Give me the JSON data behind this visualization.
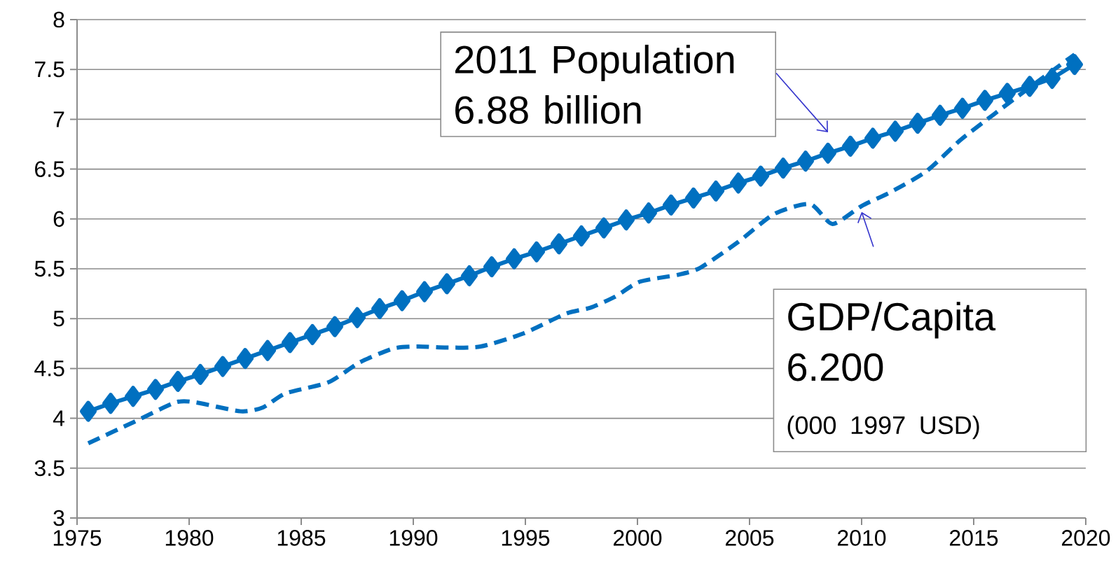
{
  "chart_data": {
    "type": "line",
    "xlim": [
      1975,
      2020
    ],
    "xticks": [
      1975,
      1980,
      1985,
      1990,
      1995,
      2000,
      2005,
      2010,
      2015,
      2020
    ],
    "ylim": [
      3,
      8
    ],
    "yticks": [
      3,
      3.5,
      4,
      4.5,
      5,
      5.5,
      6,
      6.5,
      7,
      7.5,
      8
    ],
    "grid": "y",
    "series": [
      {
        "color": "#0070c0",
        "marker": "diamond",
        "line_style": "solid",
        "x": [
          1975.5,
          1976.5,
          1977.5,
          1978.5,
          1979.5,
          1980.5,
          1981.5,
          1982.5,
          1983.5,
          1984.5,
          1985.5,
          1986.5,
          1987.5,
          1988.5,
          1989.5,
          1990.5,
          1991.5,
          1992.5,
          1993.5,
          1994.5,
          1995.5,
          1996.5,
          1997.5,
          1998.5,
          1999.5,
          2000.5,
          2001.5,
          2002.5,
          2003.5,
          2004.5,
          2005.5,
          2006.5,
          2007.5,
          2008.5,
          2009.5,
          2010.5,
          2011.5,
          2012.5,
          2013.5,
          2014.5,
          2015.5,
          2016.5,
          2017.5,
          2018.5,
          2019.5
        ],
        "values": [
          4.07,
          4.15,
          4.22,
          4.29,
          4.37,
          4.44,
          4.52,
          4.6,
          4.68,
          4.76,
          4.84,
          4.92,
          5.01,
          5.1,
          5.18,
          5.27,
          5.35,
          5.43,
          5.52,
          5.6,
          5.67,
          5.75,
          5.83,
          5.91,
          5.99,
          6.06,
          6.14,
          6.21,
          6.28,
          6.36,
          6.43,
          6.51,
          6.58,
          6.66,
          6.73,
          6.81,
          6.88,
          6.96,
          7.04,
          7.11,
          7.19,
          7.26,
          7.33,
          7.41,
          7.55
        ]
      },
      {
        "color": "#0070c0",
        "marker": "none",
        "line_style": "dashed",
        "x": [
          1975.5,
          1977.6,
          1979.4,
          1980.3,
          1982.3,
          1983.3,
          1984.3,
          1986.2,
          1987.6,
          1989.1,
          1990.2,
          1991.4,
          1993.0,
          1994.9,
          1996.8,
          1997.9,
          1999.0,
          2000.1,
          2001.8,
          2002.8,
          2004.5,
          2006.1,
          2007.7,
          2008.7,
          2010.0,
          2011.3,
          2012.9,
          2014.4,
          2015.9,
          2017.5,
          2019.5
        ],
        "values": [
          3.75,
          3.97,
          4.16,
          4.16,
          4.07,
          4.11,
          4.25,
          4.36,
          4.56,
          4.7,
          4.72,
          4.71,
          4.72,
          4.85,
          5.05,
          5.11,
          5.22,
          5.37,
          5.44,
          5.51,
          5.77,
          6.05,
          6.15,
          5.95,
          6.13,
          6.27,
          6.48,
          6.79,
          7.05,
          7.32,
          7.65
        ]
      }
    ],
    "annotations": [
      "2011 Population 6.88 billion",
      "GDP/Capita 6.200",
      "(000 1997 USD)"
    ]
  }
}
